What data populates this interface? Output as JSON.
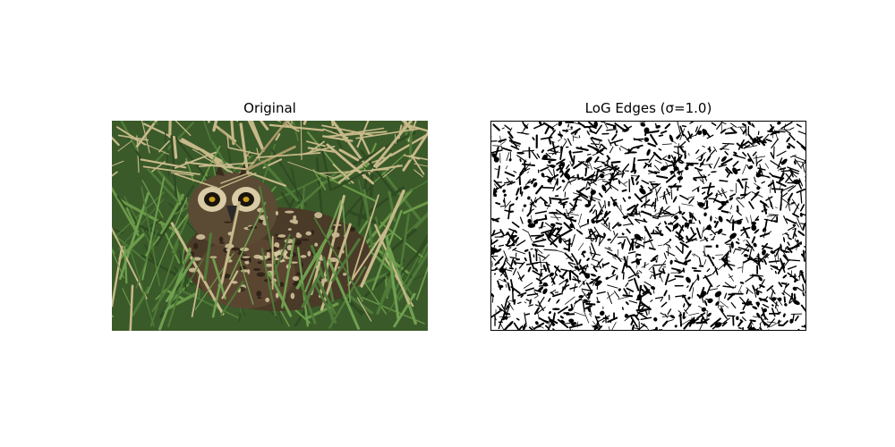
{
  "figure": {
    "left_title": "Original",
    "right_title": "LoG Edges (σ=1.0)"
  },
  "panels": {
    "left": {
      "subject": "short-eared owl nestled in grass",
      "palette": {
        "grass_dark": "#2f4a22",
        "grass_green": "#4f7a38",
        "dry_grass": "#c8b98a",
        "owl_brown": "#4a3a28",
        "owl_cream": "#d9c9a0"
      }
    },
    "right": {
      "style": "binary edge map",
      "colors": {
        "background": "#ffffff",
        "edges": "#000000"
      }
    }
  }
}
